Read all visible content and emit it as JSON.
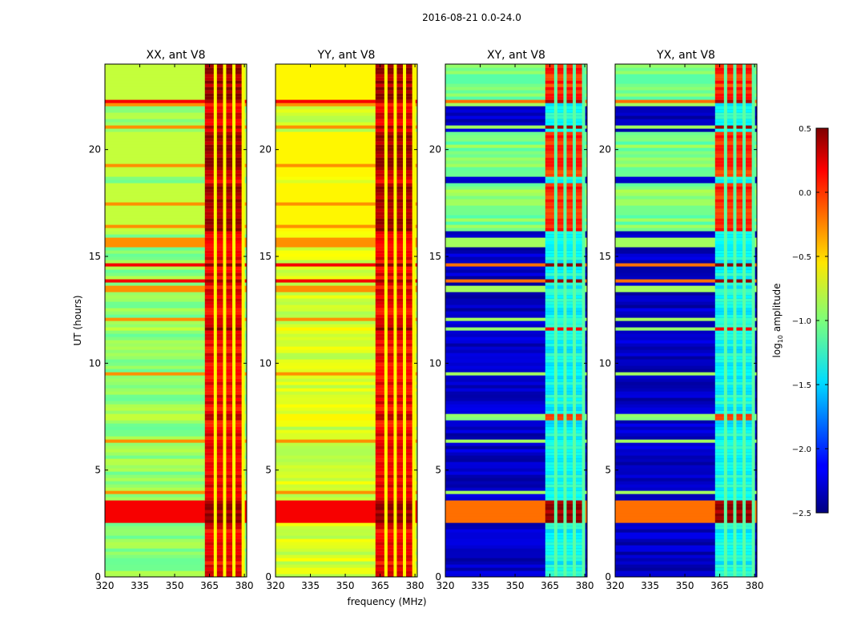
{
  "figure": {
    "suptitle": "2016-08-21 0.0-24.0",
    "xlabel": "frequency (MHz)",
    "ylabel": "UT (hours)"
  },
  "chart_data": {
    "type": "heatmap",
    "panels": [
      {
        "title": "XX, ant V8",
        "kind": "auto",
        "base": -0.95
      },
      {
        "title": "YY, ant V8",
        "kind": "auto",
        "base": -0.75
      },
      {
        "title": "XY, ant V8",
        "kind": "cross",
        "base": -2.3
      },
      {
        "title": "YX, ant V8",
        "kind": "cross",
        "base": -2.3
      }
    ],
    "xlim": [
      320,
      381
    ],
    "ylim": [
      0,
      24
    ],
    "xticks": [
      320,
      335,
      350,
      365,
      380
    ],
    "yticks": [
      0,
      5,
      10,
      15,
      20
    ],
    "interference_band_mhz": [
      363,
      380
    ],
    "interference_gaps_mhz": [
      367.5,
      371.5,
      375.5,
      379.5
    ],
    "bright_ut_ranges_hours": [
      [
        2.5,
        3.6
      ],
      [
        13.8,
        14.0
      ],
      [
        14.5,
        14.7
      ],
      [
        21.0,
        21.1
      ],
      [
        22.2,
        22.4
      ]
    ],
    "flagged_ut_ranges_hours": [
      [
        7.3,
        7.6
      ],
      [
        11.5,
        11.7
      ],
      [
        16.2,
        18.5
      ],
      [
        18.8,
        20.8
      ],
      [
        22.4,
        24.0
      ]
    ],
    "colorbar": {
      "label": "log",
      "label_sub": "10",
      "label_tail": " amplitude",
      "range": [
        -2.5,
        0.5
      ],
      "ticks": [
        "0.5",
        "0.0",
        "−0.5",
        "−1.0",
        "−1.5",
        "−2.0",
        "−2.5"
      ],
      "tick_values": [
        0.5,
        0.0,
        -0.5,
        -1.0,
        -1.5,
        -2.0,
        -2.5
      ],
      "colormap": "jet"
    }
  }
}
